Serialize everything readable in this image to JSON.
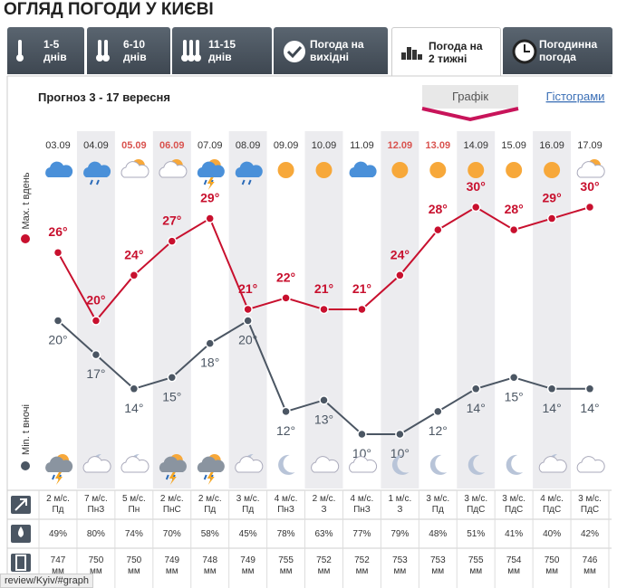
{
  "header": {
    "title": "ОГЛЯД ПОГОДИ У КИЄВІ"
  },
  "tabs": [
    [
      "1-5",
      "днів"
    ],
    [
      "6-10",
      "днів"
    ],
    [
      "11-15",
      "днів"
    ],
    [
      "Погода на",
      "вихідні"
    ],
    [
      "Погода на",
      "2 тижні"
    ],
    [
      "Погодинна",
      "погода"
    ]
  ],
  "chart_data": {
    "type": "line",
    "subtitle": "Прогноз 3 - 17 вересня",
    "views": [
      "Графік",
      "Гістограми"
    ],
    "categories": [
      "03.09",
      "04.09",
      "05.09",
      "06.09",
      "07.09",
      "08.09",
      "09.09",
      "10.09",
      "11.09",
      "12.09",
      "13.09",
      "14.09",
      "15.09",
      "16.09",
      "17.09"
    ],
    "category_colors": [
      "#333333",
      "#333333",
      "#d9534f",
      "#d9534f",
      "#333333",
      "#333333",
      "#333333",
      "#333333",
      "#333333",
      "#d9534f",
      "#d9534f",
      "#333333",
      "#333333",
      "#333333",
      "#333333"
    ],
    "series": [
      {
        "name": "Max. t вдень",
        "color": "#c8102e",
        "values": [
          26,
          20,
          24,
          27,
          29,
          21,
          22,
          21,
          21,
          24,
          28,
          30,
          28,
          29,
          30
        ],
        "value_labels": [
          "26°",
          "20°",
          "24°",
          "27°",
          "29°",
          "21°",
          "22°",
          "21°",
          "21°",
          "24°",
          "28°",
          "30°",
          "28°",
          "29°",
          "30°"
        ]
      },
      {
        "name": "Min. t вночі",
        "color": "#4b5663",
        "values": [
          20,
          17,
          14,
          15,
          18,
          20,
          12,
          13,
          10,
          10,
          12,
          14,
          15,
          14,
          14
        ],
        "value_labels": [
          "20°",
          "17°",
          "14°",
          "15°",
          "18°",
          "20°",
          "12°",
          "13°",
          "10°",
          "10°",
          "12°",
          "14°",
          "15°",
          "14°",
          "14°"
        ]
      }
    ]
  },
  "table": {
    "wind_speed": [
      "2 м/с.",
      "7 м/с.",
      "5 м/с.",
      "2 м/с.",
      "2 м/с.",
      "3 м/с.",
      "4 м/с.",
      "2 м/с.",
      "4 м/с.",
      "1 м/с.",
      "3 м/с.",
      "3 м/с.",
      "3 м/с.",
      "4 м/с.",
      "3 м/с."
    ],
    "wind_dir": [
      "Пд",
      "ПнЗ",
      "Пн",
      "ПнС",
      "Пд",
      "Пд",
      "ПнЗ",
      "З",
      "ПнЗ",
      "З",
      "Пд",
      "ПдС",
      "ПдС",
      "ПдС",
      "ПдС"
    ],
    "humidity": [
      "49%",
      "80%",
      "74%",
      "70%",
      "58%",
      "45%",
      "78%",
      "63%",
      "77%",
      "79%",
      "48%",
      "51%",
      "41%",
      "40%",
      "42%"
    ],
    "pressure": [
      "747",
      "750",
      "750",
      "749",
      "748",
      "749",
      "755",
      "752",
      "752",
      "753",
      "753",
      "755",
      "754",
      "750",
      "746"
    ],
    "pressure_unit": "мм"
  },
  "status_url": "review/Kyiv/#graph"
}
